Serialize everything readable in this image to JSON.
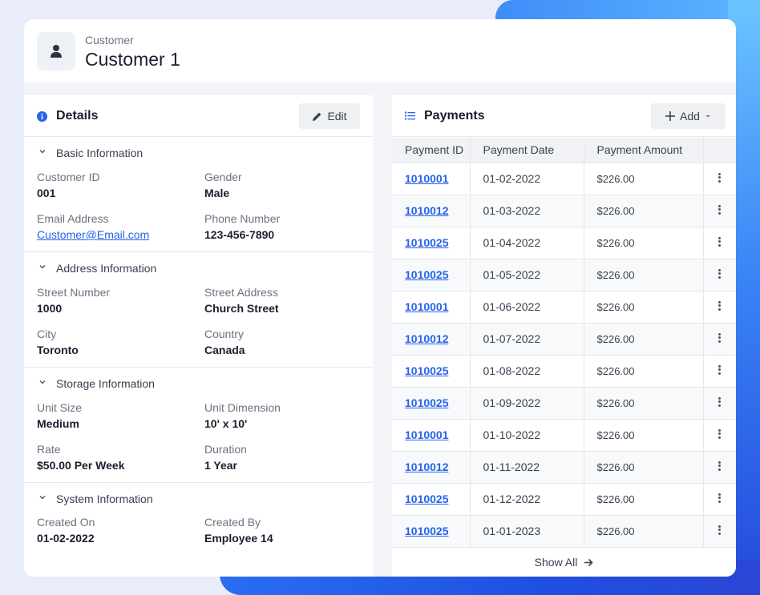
{
  "header": {
    "subtitle": "Customer",
    "title": "Customer 1"
  },
  "details": {
    "title": "Details",
    "edit_label": "Edit",
    "sections": {
      "basic": {
        "title": "Basic Information",
        "customer_id_label": "Customer ID",
        "customer_id": "001",
        "gender_label": "Gender",
        "gender": "Male",
        "email_label": "Email Address",
        "email": "Customer@Email.com",
        "phone_label": "Phone Number",
        "phone": "123-456-7890"
      },
      "address": {
        "title": "Address Information",
        "street_number_label": "Street Number",
        "street_number": "1000",
        "street_address_label": "Street Address",
        "street_address": "Church Street",
        "city_label": "City",
        "city": "Toronto",
        "country_label": "Country",
        "country": "Canada"
      },
      "storage": {
        "title": "Storage Information",
        "unit_size_label": "Unit Size",
        "unit_size": "Medium",
        "unit_dimension_label": "Unit Dimension",
        "unit_dimension": "10' x 10'",
        "rate_label": "Rate",
        "rate": "$50.00 Per Week",
        "duration_label": "Duration",
        "duration": "1 Year"
      },
      "system": {
        "title": "System Information",
        "created_on_label": "Created On",
        "created_on": "01-02-2022",
        "created_by_label": "Created By",
        "created_by": "Employee 14"
      }
    }
  },
  "payments": {
    "title": "Payments",
    "add_label": "Add",
    "columns": [
      "Payment ID",
      "Payment Date",
      "Payment Amount"
    ],
    "rows": [
      {
        "id": "1010001",
        "date": "01-02-2022",
        "amount": "$226.00"
      },
      {
        "id": "1010012",
        "date": "01-03-2022",
        "amount": "$226.00"
      },
      {
        "id": "1010025",
        "date": "01-04-2022",
        "amount": "$226.00"
      },
      {
        "id": "1010025",
        "date": "01-05-2022",
        "amount": "$226.00"
      },
      {
        "id": "1010001",
        "date": "01-06-2022",
        "amount": "$226.00"
      },
      {
        "id": "1010012",
        "date": "01-07-2022",
        "amount": "$226.00"
      },
      {
        "id": "1010025",
        "date": "01-08-2022",
        "amount": "$226.00"
      },
      {
        "id": "1010025",
        "date": "01-09-2022",
        "amount": "$226.00"
      },
      {
        "id": "1010001",
        "date": "01-10-2022",
        "amount": "$226.00"
      },
      {
        "id": "1010012",
        "date": "01-11-2022",
        "amount": "$226.00"
      },
      {
        "id": "1010025",
        "date": "01-12-2022",
        "amount": "$226.00"
      },
      {
        "id": "1010025",
        "date": "01-01-2023",
        "amount": "$226.00"
      }
    ],
    "show_all_label": "Show All"
  },
  "icons": {
    "avatar": "user-icon",
    "details": "info-icon",
    "edit": "pencil-icon",
    "payments": "list-icon",
    "add": "plus-icon",
    "dropdown": "caret-down-icon",
    "section": "chevron-down-icon",
    "row_menu": "kebab-icon",
    "show_all": "arrow-right-icon"
  },
  "colors": {
    "link": "#2563eb",
    "accent_gradient_start": "#6fc6ff",
    "accent_gradient_end": "#2244d8"
  }
}
